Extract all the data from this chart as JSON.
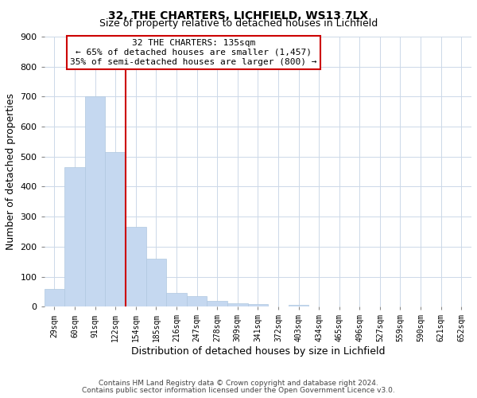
{
  "title": "32, THE CHARTERS, LICHFIELD, WS13 7LX",
  "subtitle": "Size of property relative to detached houses in Lichfield",
  "xlabel": "Distribution of detached houses by size in Lichfield",
  "ylabel": "Number of detached properties",
  "bar_labels": [
    "29sqm",
    "60sqm",
    "91sqm",
    "122sqm",
    "154sqm",
    "185sqm",
    "216sqm",
    "247sqm",
    "278sqm",
    "309sqm",
    "341sqm",
    "372sqm",
    "403sqm",
    "434sqm",
    "465sqm",
    "496sqm",
    "527sqm",
    "559sqm",
    "590sqm",
    "621sqm",
    "652sqm"
  ],
  "bar_values": [
    60,
    465,
    700,
    515,
    265,
    160,
    47,
    35,
    20,
    12,
    8,
    0,
    5,
    0,
    0,
    0,
    0,
    0,
    0,
    0,
    0
  ],
  "bar_color": "#c5d8f0",
  "bar_edge_color": "#b0c8e0",
  "vline_position": 3.5,
  "vline_color": "#cc0000",
  "ylim": [
    0,
    900
  ],
  "yticks": [
    0,
    100,
    200,
    300,
    400,
    500,
    600,
    700,
    800,
    900
  ],
  "annotation_title": "32 THE CHARTERS: 135sqm",
  "annotation_line1": "← 65% of detached houses are smaller (1,457)",
  "annotation_line2": "35% of semi-detached houses are larger (800) →",
  "annotation_box_color": "#cc0000",
  "footnote1": "Contains HM Land Registry data © Crown copyright and database right 2024.",
  "footnote2": "Contains public sector information licensed under the Open Government Licence v3.0.",
  "bg_color": "#ffffff",
  "grid_color": "#ccd8e8"
}
